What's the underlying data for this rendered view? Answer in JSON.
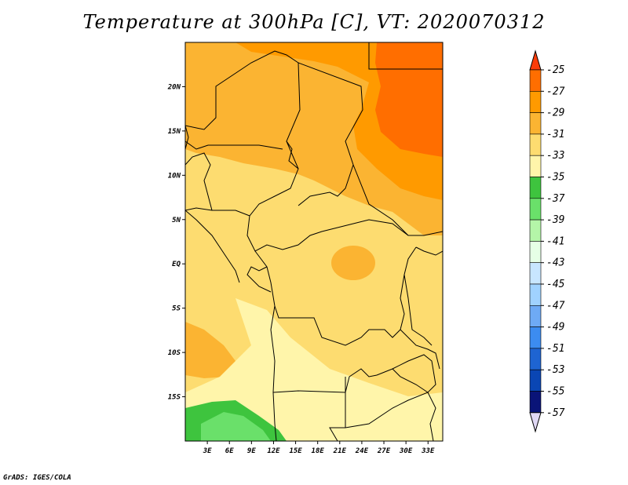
{
  "title": "Temperature at 300hPa [C], VT: 2020070312",
  "credit": "GrADS: IGES/COLA",
  "map": {
    "lon_range": [
      0,
      35
    ],
    "lat_range": [
      -20,
      25
    ],
    "x_ticks": [
      {
        "lon": 3,
        "label": "3E"
      },
      {
        "lon": 6,
        "label": "6E"
      },
      {
        "lon": 9,
        "label": "9E"
      },
      {
        "lon": 12,
        "label": "12E"
      },
      {
        "lon": 15,
        "label": "15E"
      },
      {
        "lon": 18,
        "label": "18E"
      },
      {
        "lon": 21,
        "label": "21E"
      },
      {
        "lon": 24,
        "label": "24E"
      },
      {
        "lon": 27,
        "label": "27E"
      },
      {
        "lon": 30,
        "label": "30E"
      },
      {
        "lon": 33,
        "label": "33E"
      }
    ],
    "y_ticks": [
      {
        "lat": 20,
        "label": "20N"
      },
      {
        "lat": 15,
        "label": "15N"
      },
      {
        "lat": 10,
        "label": "10N"
      },
      {
        "lat": 5,
        "label": "5N"
      },
      {
        "lat": 0,
        "label": "EQ"
      },
      {
        "lat": -5,
        "label": "5S"
      },
      {
        "lat": -10,
        "label": "10S"
      },
      {
        "lat": -15,
        "label": "15S"
      }
    ]
  },
  "colorbar": {
    "levels": [
      "-25",
      "-27",
      "-29",
      "-31",
      "-33",
      "-35",
      "-37",
      "-39",
      "-41",
      "-43",
      "-45",
      "-47",
      "-49",
      "-51",
      "-53",
      "-55",
      "-57"
    ],
    "colors": [
      "#fa3c0a",
      "#ff6e00",
      "#ff9a00",
      "#fbb432",
      "#fddc70",
      "#fff5aa",
      "#3ec43e",
      "#6ae06a",
      "#b4f5a8",
      "#e6ffe6",
      "#c8e6ff",
      "#a0d2ff",
      "#6eaaf5",
      "#3c8cf0",
      "#1e64d2",
      "#0a46b4",
      "#0a1478",
      "#e0d8f4"
    ]
  }
}
